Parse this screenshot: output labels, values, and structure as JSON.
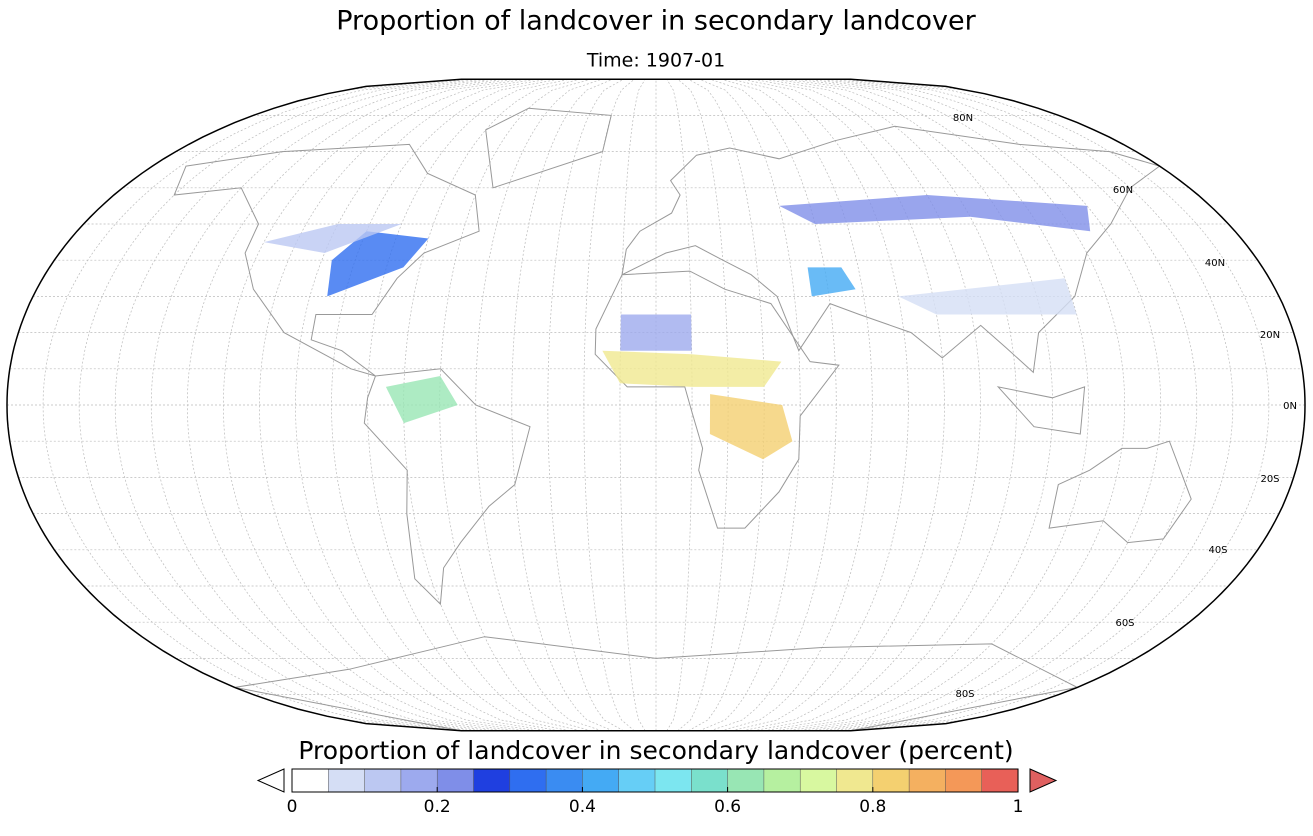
{
  "title": "Proportion of landcover in secondary landcover",
  "subtitle": "Time: 1907-01",
  "lat_labels": [
    "80N",
    "60N",
    "40N",
    "20N",
    "0N",
    "20S",
    "40S",
    "60S",
    "80S"
  ],
  "colorbar": {
    "label": "Proportion of landcover in secondary landcover (percent)",
    "range": [
      0,
      1
    ],
    "ticks": [
      0,
      0.2,
      0.4,
      0.6,
      0.8,
      1
    ],
    "colors": [
      "#ffffff",
      "#d5def5",
      "#bcc8f2",
      "#9daaee",
      "#7f8ee8",
      "#1f3fe0",
      "#2f6ef0",
      "#3a8cf2",
      "#44aaf4",
      "#66cef6",
      "#7ce6f0",
      "#7ae0cc",
      "#98e6b4",
      "#b6f0a0",
      "#d8f8a0",
      "#f0e890",
      "#f4d070",
      "#f4b060",
      "#f49858",
      "#e86058"
    ],
    "under_color": "#ffffff",
    "over_color": "#e06060"
  }
}
